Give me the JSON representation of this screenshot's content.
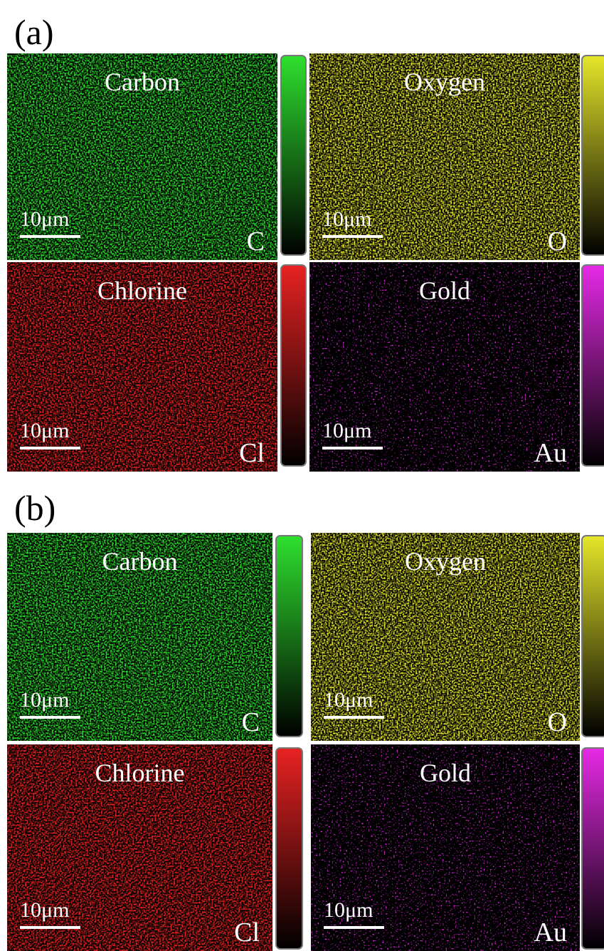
{
  "panels": [
    {
      "label": "(a)",
      "maps": [
        {
          "title": "Carbon",
          "symbol": "C",
          "scale": "10μm",
          "color": "#2ee02e"
        },
        {
          "title": "Oxygen",
          "symbol": "O",
          "scale": "10μm",
          "color": "#e6e62a"
        },
        {
          "title": "Chlorine",
          "symbol": "Cl",
          "scale": "10μm",
          "color": "#e82222"
        },
        {
          "title": "Gold",
          "symbol": "Au",
          "scale": "10μm",
          "color": "#e62ae6"
        }
      ]
    },
    {
      "label": "(b)",
      "maps": [
        {
          "title": "Carbon",
          "symbol": "C",
          "scale": "10μm",
          "color": "#2ee02e"
        },
        {
          "title": "Oxygen",
          "symbol": "O",
          "scale": "10μm",
          "color": "#e6e62a"
        },
        {
          "title": "Chlorine",
          "symbol": "Cl",
          "scale": "10μm",
          "color": "#e82222"
        },
        {
          "title": "Gold",
          "symbol": "Au",
          "scale": "10μm",
          "color": "#e62ae6"
        }
      ]
    }
  ]
}
